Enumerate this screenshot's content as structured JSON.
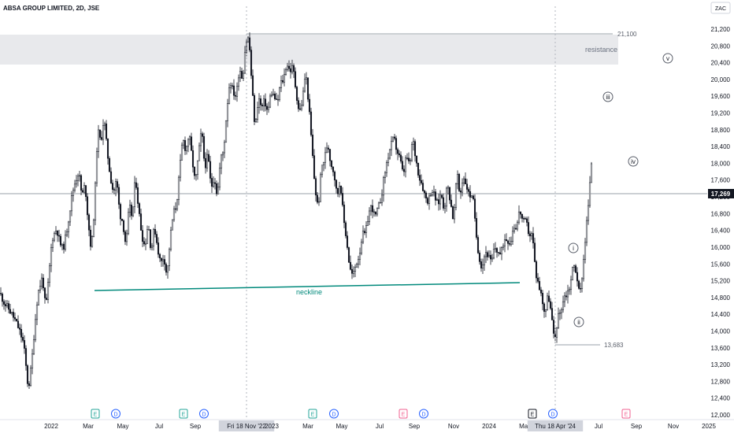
{
  "header": {
    "title": "ABSA GROUP LIMITED, 2D, JSE",
    "currency": "ZAC"
  },
  "colors": {
    "candle": "#131722",
    "neckline": "#00897b",
    "resistance_zone": "#e8e9ec",
    "hline": "#9aa0aa",
    "axis_text": "#131722",
    "event_earnings": "#26a69a",
    "event_dividend": "#2962ff",
    "event_future": "#f06292"
  },
  "chart_data": {
    "type": "candlestick",
    "price_axis": {
      "ticks": [
        "21,200",
        "20,800",
        "20,400",
        "20,000",
        "19,600",
        "19,200",
        "18,800",
        "18,400",
        "18,000",
        "17,600",
        "17,200",
        "16,800",
        "16,400",
        "16,000",
        "15,600",
        "15,200",
        "14,800",
        "14,400",
        "14,000",
        "13,600",
        "13,200",
        "12,800",
        "12,400",
        "12,000"
      ],
      "ylim": [
        11900,
        21600
      ]
    },
    "time_axis": {
      "ticks": [
        "2022",
        "Mar",
        "May",
        "Jul",
        "Sep",
        "Fri 18 Nov '22",
        "2023",
        "Mar",
        "May",
        "Jul",
        "Sep",
        "Nov",
        "2024",
        "Mar",
        "Thu 18 Apr '24",
        "Jul",
        "Sep",
        "Nov",
        "2025"
      ]
    },
    "last_price": "17,269",
    "path_points": [
      [
        0,
        14900
      ],
      [
        6,
        14650
      ],
      [
        12,
        14500
      ],
      [
        18,
        14300
      ],
      [
        24,
        14050
      ],
      [
        30,
        13700
      ],
      [
        36,
        12600
      ],
      [
        40,
        13200
      ],
      [
        44,
        14100
      ],
      [
        48,
        14900
      ],
      [
        54,
        15300
      ],
      [
        58,
        14500
      ],
      [
        62,
        15300
      ],
      [
        66,
        16200
      ],
      [
        72,
        16450
      ],
      [
        76,
        16100
      ],
      [
        80,
        15950
      ],
      [
        84,
        16300
      ],
      [
        88,
        16800
      ],
      [
        92,
        17300
      ],
      [
        96,
        17600
      ],
      [
        100,
        17800
      ],
      [
        104,
        17200
      ],
      [
        108,
        17500
      ],
      [
        112,
        16600
      ],
      [
        116,
        15900
      ],
      [
        120,
        17000
      ],
      [
        124,
        18800
      ],
      [
        128,
        18500
      ],
      [
        132,
        19100
      ],
      [
        136,
        18300
      ],
      [
        140,
        17700
      ],
      [
        144,
        17300
      ],
      [
        148,
        17600
      ],
      [
        152,
        16800
      ],
      [
        156,
        16600
      ],
      [
        160,
        16000
      ],
      [
        164,
        17000
      ],
      [
        168,
        16700
      ],
      [
        172,
        17700
      ],
      [
        176,
        16900
      ],
      [
        180,
        16300
      ],
      [
        184,
        16000
      ],
      [
        188,
        16600
      ],
      [
        192,
        15900
      ],
      [
        196,
        16500
      ],
      [
        200,
        16000
      ],
      [
        204,
        15600
      ],
      [
        208,
        15800
      ],
      [
        212,
        15300
      ],
      [
        216,
        16200
      ],
      [
        220,
        16800
      ],
      [
        224,
        17000
      ],
      [
        228,
        17800
      ],
      [
        232,
        18600
      ],
      [
        236,
        18300
      ],
      [
        240,
        18700
      ],
      [
        244,
        18100
      ],
      [
        248,
        17500
      ],
      [
        252,
        18200
      ],
      [
        256,
        18800
      ],
      [
        260,
        17900
      ],
      [
        264,
        18200
      ],
      [
        268,
        17400
      ],
      [
        272,
        17700
      ],
      [
        276,
        17200
      ],
      [
        280,
        18100
      ],
      [
        284,
        18300
      ],
      [
        288,
        19300
      ],
      [
        292,
        20000
      ],
      [
        296,
        19700
      ],
      [
        300,
        19600
      ],
      [
        304,
        20300
      ],
      [
        308,
        20000
      ],
      [
        312,
        20900
      ],
      [
        316,
        21000
      ],
      [
        320,
        19800
      ],
      [
        324,
        18800
      ],
      [
        328,
        19600
      ],
      [
        332,
        19300
      ],
      [
        336,
        19500
      ],
      [
        340,
        19200
      ],
      [
        344,
        19700
      ],
      [
        348,
        19600
      ],
      [
        352,
        19400
      ],
      [
        356,
        19900
      ],
      [
        360,
        20000
      ],
      [
        364,
        20400
      ],
      [
        368,
        20200
      ],
      [
        372,
        20300
      ],
      [
        376,
        19700
      ],
      [
        380,
        19200
      ],
      [
        384,
        19500
      ],
      [
        388,
        20200
      ],
      [
        392,
        19400
      ],
      [
        396,
        18400
      ],
      [
        400,
        17400
      ],
      [
        404,
        16900
      ],
      [
        408,
        17900
      ],
      [
        412,
        18100
      ],
      [
        416,
        18500
      ],
      [
        420,
        18000
      ],
      [
        424,
        17800
      ],
      [
        428,
        17200
      ],
      [
        432,
        17600
      ],
      [
        436,
        16700
      ],
      [
        440,
        16200
      ],
      [
        444,
        15500
      ],
      [
        448,
        15300
      ],
      [
        452,
        15600
      ],
      [
        456,
        15800
      ],
      [
        460,
        16300
      ],
      [
        464,
        16300
      ],
      [
        468,
        16800
      ],
      [
        472,
        17000
      ],
      [
        476,
        16700
      ],
      [
        480,
        16900
      ],
      [
        484,
        17200
      ],
      [
        488,
        17700
      ],
      [
        492,
        18100
      ],
      [
        496,
        18400
      ],
      [
        500,
        18600
      ],
      [
        504,
        18300
      ],
      [
        508,
        18100
      ],
      [
        512,
        17700
      ],
      [
        516,
        18200
      ],
      [
        520,
        17900
      ],
      [
        524,
        18600
      ],
      [
        528,
        18100
      ],
      [
        532,
        17700
      ],
      [
        536,
        17500
      ],
      [
        540,
        17200
      ],
      [
        544,
        17100
      ],
      [
        548,
        17400
      ],
      [
        552,
        17200
      ],
      [
        556,
        17000
      ],
      [
        560,
        17300
      ],
      [
        564,
        16900
      ],
      [
        568,
        17500
      ],
      [
        572,
        17100
      ],
      [
        576,
        16600
      ],
      [
        580,
        17800
      ],
      [
        584,
        17200
      ],
      [
        588,
        17700
      ],
      [
        592,
        17500
      ],
      [
        596,
        17200
      ],
      [
        600,
        17300
      ],
      [
        604,
        16400
      ],
      [
        608,
        15800
      ],
      [
        612,
        15500
      ],
      [
        616,
        15900
      ],
      [
        620,
        15800
      ],
      [
        624,
        15600
      ],
      [
        628,
        16000
      ],
      [
        632,
        15900
      ],
      [
        636,
        15800
      ],
      [
        640,
        16200
      ],
      [
        644,
        16200
      ],
      [
        648,
        16100
      ],
      [
        652,
        16500
      ],
      [
        656,
        16500
      ],
      [
        660,
        16900
      ],
      [
        664,
        16600
      ],
      [
        668,
        16600
      ],
      [
        672,
        16300
      ],
      [
        676,
        16300
      ],
      [
        680,
        15400
      ],
      [
        684,
        15100
      ],
      [
        688,
        14800
      ],
      [
        692,
        14400
      ],
      [
        696,
        14900
      ],
      [
        700,
        14400
      ],
      [
        704,
        13700
      ],
      [
        708,
        14300
      ],
      [
        712,
        14500
      ],
      [
        716,
        14800
      ],
      [
        720,
        14900
      ],
      [
        724,
        15100
      ],
      [
        728,
        15600
      ],
      [
        732,
        15400
      ],
      [
        736,
        14800
      ],
      [
        740,
        15500
      ],
      [
        744,
        16400
      ],
      [
        748,
        17200
      ],
      [
        752,
        18300
      ]
    ],
    "annotations": {
      "resistance_label": "resistance",
      "resistance_level": "21,100",
      "neckline_label": "neckline",
      "low_level": "13,683",
      "waves": [
        "i",
        "ii",
        "iii",
        "iv",
        "v"
      ]
    },
    "events": [
      {
        "type": "E",
        "color": "event_earnings"
      },
      {
        "type": "D",
        "color": "event_dividend"
      },
      {
        "type": "E",
        "color": "event_earnings"
      },
      {
        "type": "D",
        "color": "event_dividend"
      },
      {
        "type": "E",
        "color": "event_earnings"
      },
      {
        "type": "D",
        "color": "event_dividend"
      },
      {
        "type": "E",
        "color": "event_future"
      },
      {
        "type": "D",
        "color": "event_dividend"
      },
      {
        "type": "E",
        "color": "event_future"
      },
      {
        "type": "D",
        "color": "event_dividend"
      },
      {
        "type": "E",
        "color": "event_future"
      }
    ]
  }
}
